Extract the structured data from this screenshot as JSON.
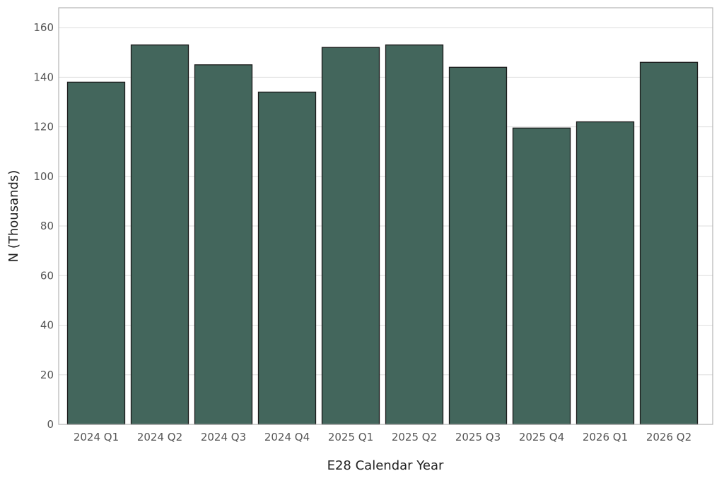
{
  "chart_data": {
    "type": "bar",
    "title": "",
    "xlabel": "E28 Calendar Year",
    "ylabel": "N (Thousands)",
    "categories": [
      "2024 Q1",
      "2024 Q2",
      "2024 Q3",
      "2024 Q4",
      "2025 Q1",
      "2025 Q2",
      "2025 Q3",
      "2025 Q4",
      "2026 Q1",
      "2026 Q2"
    ],
    "values": [
      138,
      153,
      145,
      134,
      152,
      153,
      144,
      119.5,
      122,
      146
    ],
    "ylim": [
      0,
      168
    ],
    "yticks": [
      0,
      20,
      40,
      60,
      80,
      100,
      120,
      140,
      160
    ],
    "grid": true,
    "legend": "none",
    "bar_color": "#43665c",
    "bar_edge_color": "#1a1a1a"
  }
}
